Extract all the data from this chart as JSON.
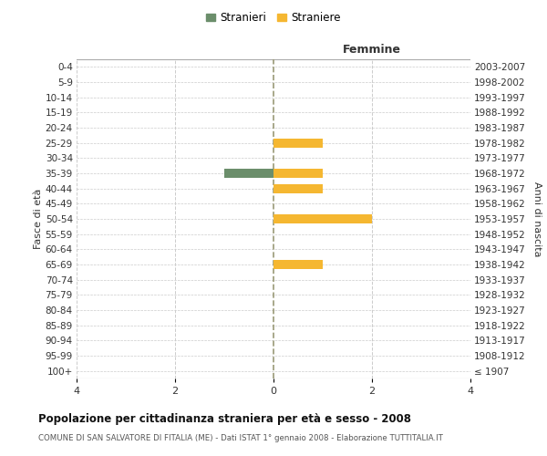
{
  "age_groups": [
    "100+",
    "95-99",
    "90-94",
    "85-89",
    "80-84",
    "75-79",
    "70-74",
    "65-69",
    "60-64",
    "55-59",
    "50-54",
    "45-49",
    "40-44",
    "35-39",
    "30-34",
    "25-29",
    "20-24",
    "15-19",
    "10-14",
    "5-9",
    "0-4"
  ],
  "birth_years": [
    "≤ 1907",
    "1908-1912",
    "1913-1917",
    "1918-1922",
    "1923-1927",
    "1928-1932",
    "1933-1937",
    "1938-1942",
    "1943-1947",
    "1948-1952",
    "1953-1957",
    "1958-1962",
    "1963-1967",
    "1968-1972",
    "1973-1977",
    "1978-1982",
    "1983-1987",
    "1988-1992",
    "1993-1997",
    "1998-2002",
    "2003-2007"
  ],
  "males": [
    0,
    0,
    0,
    0,
    0,
    0,
    0,
    0,
    0,
    0,
    0,
    0,
    0,
    -1,
    0,
    0,
    0,
    0,
    0,
    0,
    0
  ],
  "females": [
    0,
    0,
    0,
    0,
    0,
    0,
    0,
    1,
    0,
    0,
    2,
    0,
    1,
    1,
    0,
    1,
    0,
    0,
    0,
    0,
    0
  ],
  "male_color": "#6b8e6b",
  "female_color": "#f5b731",
  "title": "Popolazione per cittadinanza straniera per età e sesso - 2008",
  "subtitle": "COMUNE DI SAN SALVATORE DI FITALIA (ME) - Dati ISTAT 1° gennaio 2008 - Elaborazione TUTTITALIA.IT",
  "xlabel_right": "Femmine",
  "ylabel_left": "Fasce di età",
  "ylabel_right": "Anni di nascita",
  "legend_male": "Stranieri",
  "legend_female": "Straniere",
  "xlim": [
    -4,
    4
  ],
  "xticks": [
    -4,
    -2,
    0,
    2,
    4
  ],
  "xticklabels": [
    "4",
    "2",
    "0",
    "2",
    "4"
  ],
  "background_color": "#ffffff",
  "grid_color": "#cccccc",
  "center_line_color": "#999977"
}
